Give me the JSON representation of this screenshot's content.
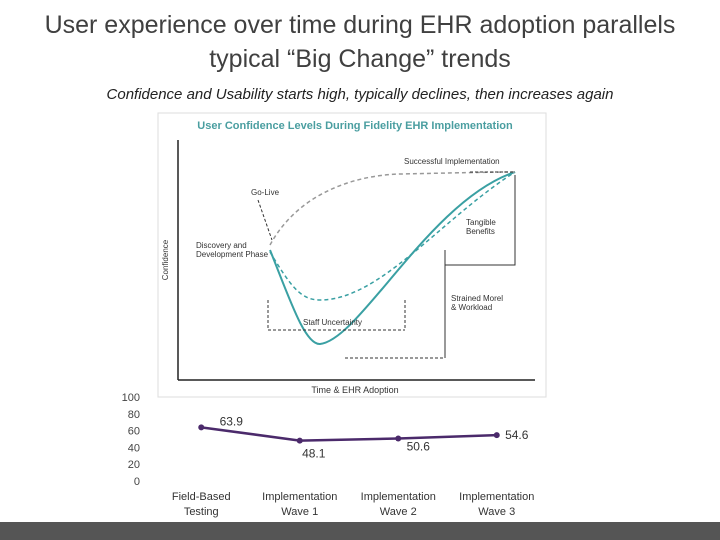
{
  "title": "User experience over time during EHR adoption parallels typical “Big Change” trends",
  "subtitle": "Confidence and Usability starts high, typically declines, then increases again",
  "diagram": {
    "title": "User Confidence Levels During Fidelity EHR Implementation",
    "y_label": "Confidence",
    "x_label": "Time & EHR Adoption",
    "labels": [
      [
        "Successful Implementation"
      ],
      [
        "Go-Live"
      ],
      [
        "Tangible",
        "Benefits"
      ],
      [
        "Discovery and",
        "Development Phase"
      ],
      [
        "Strained Morel",
        "& Workload"
      ],
      [
        "Staff Uncertainty"
      ]
    ]
  },
  "chart_data": {
    "type": "line",
    "categories": [
      "Field-Based Testing",
      "Implementation Wave 1",
      "Implementation Wave 2",
      "Implementation Wave 3"
    ],
    "series": [
      {
        "name": null,
        "color": "#4b2a6b",
        "values": [
          63.9,
          48.1,
          50.6,
          54.6
        ]
      }
    ],
    "ylim": [
      0,
      100
    ],
    "yticks": [
      0,
      20,
      40,
      60,
      80,
      100
    ],
    "grid": false
  }
}
